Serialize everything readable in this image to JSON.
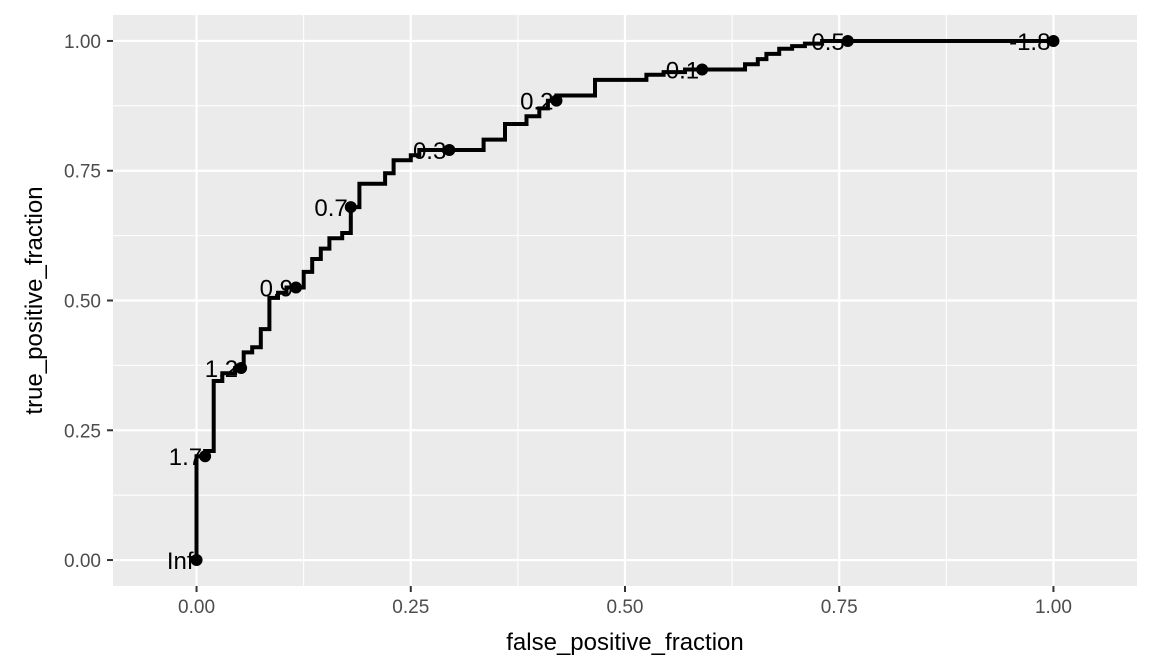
{
  "chart_data": {
    "type": "line",
    "subtype": "roc-step-curve",
    "title": "",
    "xlabel": "false_positive_fraction",
    "ylabel": "true_positive_fraction",
    "xlim": [
      -0.0975,
      1.0975
    ],
    "ylim": [
      -0.05,
      1.05
    ],
    "x_ticks": [
      0.0,
      0.25,
      0.5,
      0.75,
      1.0
    ],
    "x_tick_labels": [
      "0.00",
      "0.25",
      "0.50",
      "0.75",
      "1.00"
    ],
    "y_ticks": [
      0.0,
      0.25,
      0.5,
      0.75,
      1.0
    ],
    "y_tick_labels": [
      "0.00",
      "0.25",
      "0.50",
      "0.75",
      "1.00"
    ],
    "grid": true,
    "colors": {
      "panel": "#EBEBEB",
      "grid": "#FFFFFF",
      "line": "#000000",
      "tick_text": "#4D4D4D"
    },
    "series": [
      {
        "x": [
          0.0,
          0.0,
          0.0,
          0.0,
          0.01,
          0.01,
          0.02,
          0.02,
          0.03,
          0.03,
          0.045,
          0.045,
          0.055,
          0.055,
          0.065,
          0.065,
          0.075,
          0.075,
          0.085,
          0.085,
          0.095,
          0.095,
          0.105,
          0.105,
          0.115,
          0.125,
          0.125,
          0.135,
          0.135,
          0.145,
          0.145,
          0.155,
          0.155,
          0.17,
          0.17,
          0.18,
          0.18,
          0.19,
          0.19,
          0.21,
          0.22,
          0.22,
          0.23,
          0.23,
          0.25,
          0.25,
          0.26,
          0.26,
          0.275,
          0.295,
          0.315,
          0.335,
          0.335,
          0.36,
          0.36,
          0.385,
          0.385,
          0.4,
          0.4,
          0.41,
          0.41,
          0.42,
          0.42,
          0.435,
          0.435,
          0.465,
          0.465,
          0.525,
          0.525,
          0.545,
          0.545,
          0.57,
          0.57,
          0.59,
          0.64,
          0.64,
          0.655,
          0.655,
          0.665,
          0.665,
          0.68,
          0.68,
          0.695,
          0.695,
          0.71,
          0.71,
          0.73,
          0.73,
          0.76,
          1.0
        ],
        "y": [
          0.0,
          0.14,
          0.14,
          0.2,
          0.2,
          0.21,
          0.21,
          0.345,
          0.345,
          0.36,
          0.36,
          0.37,
          0.37,
          0.4,
          0.4,
          0.41,
          0.41,
          0.445,
          0.445,
          0.505,
          0.505,
          0.515,
          0.515,
          0.525,
          0.525,
          0.525,
          0.555,
          0.555,
          0.58,
          0.58,
          0.6,
          0.6,
          0.62,
          0.62,
          0.63,
          0.63,
          0.68,
          0.68,
          0.725,
          0.725,
          0.725,
          0.745,
          0.745,
          0.77,
          0.77,
          0.78,
          0.78,
          0.79,
          0.79,
          0.79,
          0.79,
          0.79,
          0.81,
          0.81,
          0.84,
          0.84,
          0.855,
          0.855,
          0.87,
          0.87,
          0.885,
          0.885,
          0.895,
          0.895,
          0.895,
          0.895,
          0.925,
          0.925,
          0.935,
          0.935,
          0.94,
          0.94,
          0.945,
          0.945,
          0.945,
          0.955,
          0.955,
          0.965,
          0.965,
          0.975,
          0.975,
          0.985,
          0.985,
          0.99,
          0.99,
          0.995,
          0.995,
          1.0,
          1.0,
          1.0
        ]
      }
    ],
    "points": [
      {
        "x": 0.0,
        "y": 0.0,
        "label": "Inf"
      },
      {
        "x": 0.01,
        "y": 0.2,
        "label": "1.7"
      },
      {
        "x": 0.052,
        "y": 0.37,
        "label": "1.2"
      },
      {
        "x": 0.116,
        "y": 0.525,
        "label": "0.9"
      },
      {
        "x": 0.18,
        "y": 0.68,
        "label": "0.7"
      },
      {
        "x": 0.295,
        "y": 0.79,
        "label": "0.3"
      },
      {
        "x": 0.42,
        "y": 0.885,
        "label": "0.2"
      },
      {
        "x": 0.59,
        "y": 0.945,
        "label": "0.1"
      },
      {
        "x": 0.76,
        "y": 1.0,
        "label": "-0.5"
      },
      {
        "x": 1.0,
        "y": 1.0,
        "label": "-1.8"
      }
    ]
  }
}
